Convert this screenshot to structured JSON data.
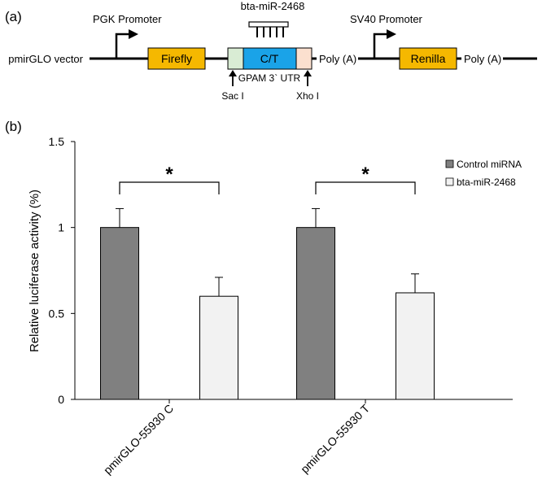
{
  "panel_a": {
    "label": "(a)",
    "vector_name": "pmirGLO vector",
    "pgk_promoter": "PGK Promoter",
    "firefly": "Firefly",
    "mirna_label": "bta-miR-2468",
    "insert": "C/T",
    "utr": "GPAM 3` UTR",
    "sac": "Sac I",
    "xho": "Xho I",
    "polya_1": "Poly (A)",
    "sv40_promoter": "SV40 Promoter",
    "renilla": "Renilla",
    "polya_2": "Poly (A)",
    "colors": {
      "reporter": "#f5b800",
      "insert": "#1aa3e8",
      "sac_site": "#d9ecd4",
      "xho_site": "#fbe0cf"
    }
  },
  "panel_b_label": "(b)",
  "chart_data": {
    "type": "bar",
    "title": "",
    "xlabel": "",
    "ylabel": "Relative luciferase activity (%)",
    "ylim": [
      0,
      1.5
    ],
    "yticks": [
      0,
      0.5,
      1,
      1.5
    ],
    "ytick_labels": [
      "0",
      "0.5",
      "1",
      "1.5"
    ],
    "categories": [
      "pmirGLO-55930 C",
      "pmirGLO-55930 T"
    ],
    "series": [
      {
        "name": "Control miRNA",
        "color": "#808080",
        "values": [
          1.0,
          1.0
        ],
        "errors": [
          0.11,
          0.11
        ]
      },
      {
        "name": "bta-miR-2468",
        "color": "#f2f2f2",
        "values": [
          0.6,
          0.62
        ],
        "errors": [
          0.11,
          0.11
        ]
      }
    ],
    "significance": [
      {
        "category": "pmirGLO-55930 C",
        "marker": "*"
      },
      {
        "category": "pmirGLO-55930 T",
        "marker": "*"
      }
    ],
    "legend_position": "top-right",
    "grid": false
  }
}
